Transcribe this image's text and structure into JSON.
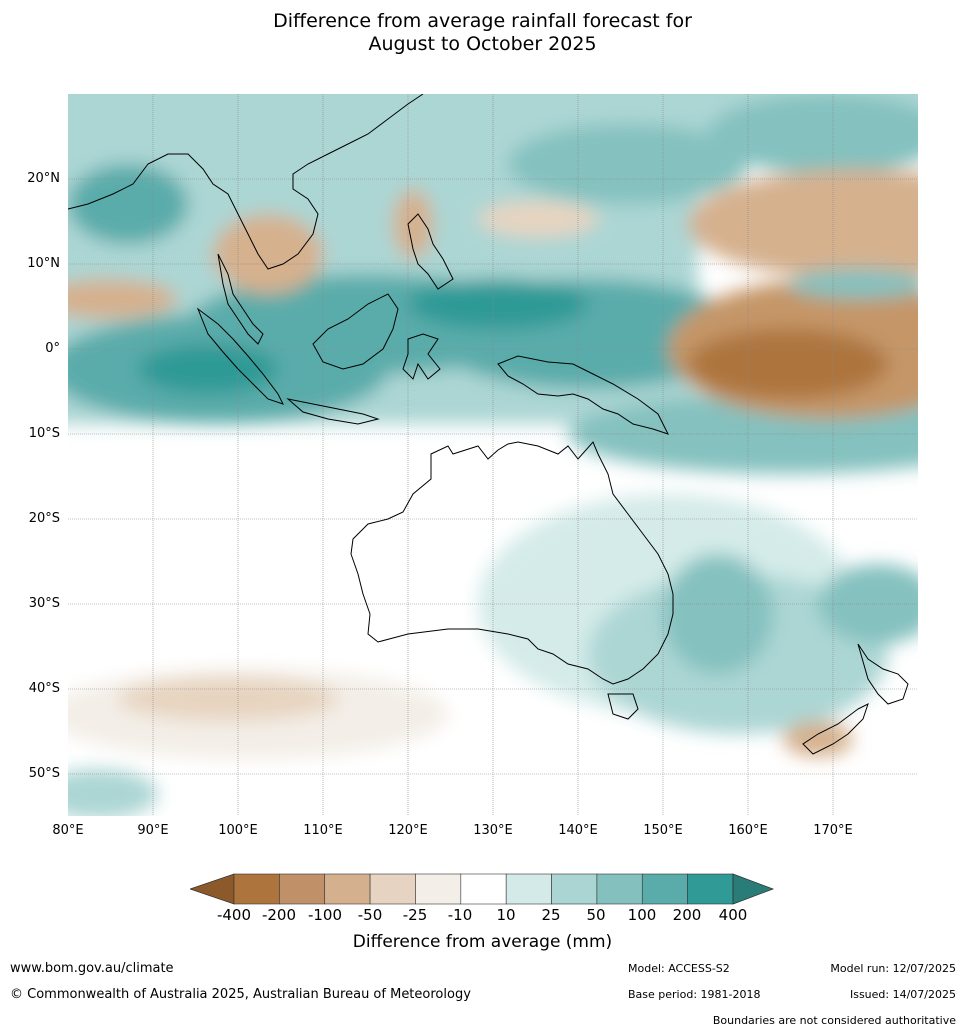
{
  "title": {
    "line1": "Difference from average rainfall forecast for",
    "line2": "August to October 2025"
  },
  "map": {
    "lon_range": [
      80,
      180
    ],
    "lat_range": [
      -55,
      30
    ],
    "lat_labels": [
      "20°N",
      "10°N",
      "0°",
      "10°S",
      "20°S",
      "30°S",
      "40°S",
      "50°S"
    ],
    "lon_labels": [
      "80°E",
      "90°E",
      "100°E",
      "110°E",
      "120°E",
      "130°E",
      "140°E",
      "150°E",
      "160°E",
      "170°E"
    ],
    "palette": {
      "-400": "#8c5a2a",
      "-200": "#ad743d",
      "-100": "#c59668",
      "-50": "#d5b18e",
      "-25": "#e7d4c0",
      "-10": "#f3eee7",
      "10": "#ffffff",
      "25": "#d4ebe9",
      "50": "#acd6d4",
      "100": "#84c1bf",
      "200": "#5aacaa",
      "400": "#2f9a96",
      "over": "#2a7c79"
    }
  },
  "legend": {
    "ticks": [
      "-400",
      "-200",
      "-100",
      "-50",
      "-25",
      "-10",
      "10",
      "25",
      "50",
      "100",
      "200",
      "400"
    ],
    "colors": [
      "#ad743d",
      "#c09068",
      "#d5b08e",
      "#e7d3c1",
      "#f3eee7",
      "#ffffff",
      "#d4eae8",
      "#abd5d3",
      "#83c0be",
      "#5aacaa",
      "#2f9a96"
    ],
    "under_color": "#8c5a2a",
    "over_color": "#2a7c79",
    "label": "Difference from average (mm)"
  },
  "footer": {
    "url": "www.bom.gov.au/climate",
    "copyright": "© Commonwealth of Australia 2025, Australian Bureau of Meteorology",
    "model": "Model: ACCESS-S2",
    "base_period": "Base period: 1981-2018",
    "model_run": "Model run: 12/07/2025",
    "issued": "Issued: 14/07/2025",
    "disclaimer": "Boundaries are not considered authoritative"
  }
}
